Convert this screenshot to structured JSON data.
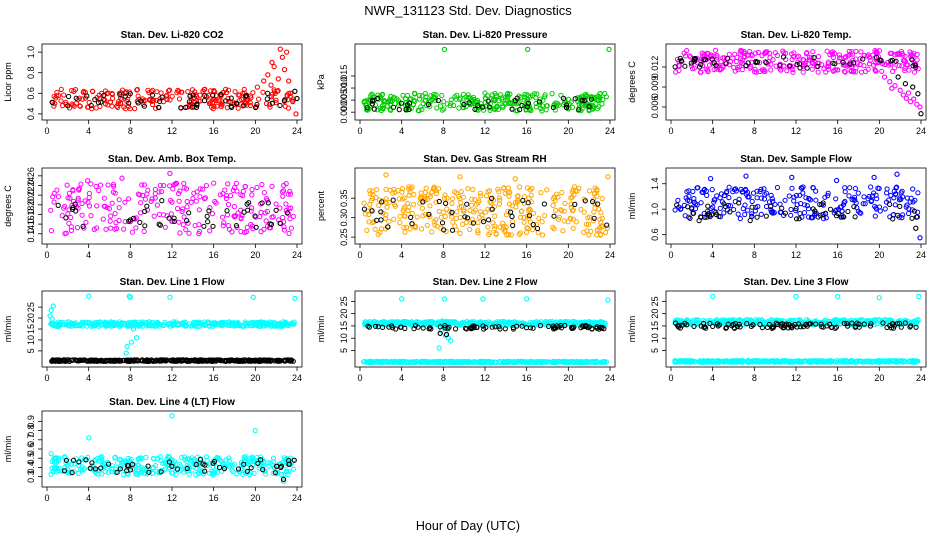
{
  "title": "NWR_131123  Std. Dev. Diagnostics",
  "xlabel": "Hour of Day (UTC)",
  "chart_data": [
    {
      "type": "scatter",
      "title": "Stan. Dev. Li-820 CO2",
      "ylabel": "Licor ppm",
      "xlim": [
        0,
        24
      ],
      "ylim": [
        0.37,
        1.05
      ],
      "xticks": [
        "0",
        "4",
        "8",
        "12",
        "16",
        "20",
        "24"
      ],
      "yticks": [
        "0.4",
        "0.6",
        "0.8",
        "1.0"
      ],
      "series": [
        {
          "color": "#ff0000",
          "dense": true,
          "band": [
            0.45,
            0.64
          ],
          "density": 0.55,
          "x": [
            20.2,
            20.8,
            21.2,
            21.5,
            21.8,
            22.1,
            22.4,
            22.6,
            22.8,
            23.0,
            23.2,
            23.4,
            23.6,
            23.9,
            21.6,
            22.2
          ],
          "y": [
            0.66,
            0.72,
            0.78,
            0.68,
            0.86,
            0.62,
            1.03,
            0.95,
            0.83,
            1.0,
            0.72,
            0.6,
            0.52,
            0.4,
            0.9,
            0.74
          ]
        },
        {
          "color": "#000000",
          "dense": true,
          "band": [
            0.46,
            0.6
          ],
          "density": 0.12,
          "x": [
            23.8,
            24.0
          ],
          "y": [
            0.62,
            0.55
          ]
        }
      ]
    },
    {
      "type": "scatter",
      "title": "Stan. Dev. Li-820 Pressure",
      "ylabel": "kPa",
      "xlim": [
        0,
        24
      ],
      "ylim": [
        -0.002,
        0.027
      ],
      "xticks": [
        "0",
        "4",
        "8",
        "12",
        "16",
        "20",
        "24"
      ],
      "yticks": [
        "0.000",
        "0.005",
        "0.010",
        "0.015"
      ],
      "series": [
        {
          "color": "#00cc00",
          "dense": true,
          "band": [
            0.0005,
            0.008
          ],
          "density": 0.75,
          "x": [
            8.1,
            16.1,
            23.9
          ],
          "y": [
            0.026,
            0.026,
            0.026
          ]
        },
        {
          "color": "#000000",
          "dense": true,
          "band": [
            0.001,
            0.006
          ],
          "density": 0.1,
          "x": [],
          "y": []
        }
      ]
    },
    {
      "type": "scatter",
      "title": "Stan. Dev. Li-820 Temp.",
      "ylabel": "degrees C",
      "xlim": [
        0,
        24
      ],
      "ylim": [
        0.0045,
        0.015
      ],
      "xticks": [
        "0",
        "4",
        "8",
        "12",
        "16",
        "20",
        "24"
      ],
      "yticks": [
        "0.006",
        "0.009",
        "0.012"
      ],
      "series": [
        {
          "color": "#ff00ff",
          "dense": true,
          "band": [
            0.0112,
            0.0145
          ],
          "density": 0.7,
          "x": [
            20.5,
            21.0,
            21.5,
            22.0,
            22.3,
            22.6,
            23.0,
            23.3,
            23.6,
            23.9,
            21.2,
            22.8
          ],
          "y": [
            0.0105,
            0.0098,
            0.0092,
            0.0085,
            0.0078,
            0.0073,
            0.0068,
            0.0072,
            0.0064,
            0.006,
            0.0088,
            0.0081
          ]
        },
        {
          "color": "#000000",
          "dense": true,
          "band": [
            0.0118,
            0.0135
          ],
          "density": 0.12,
          "x": [
            21.8,
            22.5,
            23.2,
            23.7,
            24.0
          ],
          "y": [
            0.0105,
            0.0095,
            0.009,
            0.008,
            0.005
          ]
        }
      ]
    },
    {
      "type": "scatter",
      "title": "Stan. Dev. Amb. Box Temp.",
      "ylabel": "degrees C",
      "xlim": [
        0,
        24
      ],
      "ylim": [
        0.125,
        0.27
      ],
      "xticks": [
        "0",
        "4",
        "8",
        "12",
        "16",
        "20",
        "24"
      ],
      "yticks": [
        "0.14",
        "0.16",
        "0.18",
        "0.20",
        "0.22",
        "0.24",
        "0.26"
      ],
      "series": [
        {
          "color": "#ff00ff",
          "dense": true,
          "band": [
            0.14,
            0.245
          ],
          "density": 0.6,
          "x": [
            11.8,
            7.2,
            3.9
          ],
          "y": [
            0.265,
            0.255,
            0.25
          ]
        },
        {
          "color": "#000000",
          "dense": true,
          "band": [
            0.15,
            0.21
          ],
          "density": 0.1,
          "x": [],
          "y": []
        }
      ]
    },
    {
      "type": "scatter",
      "title": "Stan. Dev. Gas Stream RH",
      "ylabel": "percent",
      "xlim": [
        0,
        24
      ],
      "ylim": [
        0.24,
        0.42
      ],
      "xticks": [
        "0",
        "4",
        "8",
        "12",
        "16",
        "20",
        "24"
      ],
      "yticks": [
        "0.25",
        "0.30",
        "0.35"
      ],
      "series": [
        {
          "color": "#ffa500",
          "dense": true,
          "band": [
            0.255,
            0.38
          ],
          "density": 0.8,
          "x": [
            2.5,
            9.6,
            14.9,
            23.8
          ],
          "y": [
            0.41,
            0.405,
            0.4,
            0.405
          ]
        },
        {
          "color": "#000000",
          "dense": true,
          "band": [
            0.265,
            0.35
          ],
          "density": 0.1,
          "x": [],
          "y": []
        }
      ]
    },
    {
      "type": "scatter",
      "title": "Stan. Dev. Sample Flow",
      "ylabel": "ml/min",
      "xlim": [
        0,
        24
      ],
      "ylim": [
        0.5,
        1.6
      ],
      "xticks": [
        "0",
        "4",
        "8",
        "12",
        "16",
        "20",
        "24"
      ],
      "yticks": [
        "0.6",
        "1.0",
        "1.4"
      ],
      "series": [
        {
          "color": "#0000ff",
          "dense": true,
          "band": [
            0.85,
            1.35
          ],
          "density": 0.6,
          "x": [
            3.8,
            7.2,
            11.6,
            15.9,
            19.5,
            23.9,
            21.7
          ],
          "y": [
            1.48,
            1.52,
            1.5,
            1.45,
            1.5,
            0.55,
            1.55
          ]
        },
        {
          "color": "#000000",
          "dense": true,
          "band": [
            0.82,
            1.1
          ],
          "density": 0.12,
          "x": [
            23.5
          ],
          "y": [
            0.7
          ]
        }
      ]
    },
    {
      "type": "scatter",
      "title": "Stan. Dev. Line 1 Flow",
      "ylabel": "ml/min",
      "xlim": [
        0,
        24
      ],
      "ylim": [
        -1,
        31
      ],
      "xticks": [
        "0",
        "4",
        "8",
        "12",
        "16",
        "20",
        "24"
      ],
      "yticks": [
        "5",
        "10",
        "15",
        "20",
        "25"
      ],
      "series": [
        {
          "color": "#00ffff",
          "dense": true,
          "band": [
            16.2,
            18.3
          ],
          "density": 0.9,
          "x": [
            0.3,
            0.4,
            0.5,
            0.6,
            4.0,
            7.9,
            8.0,
            8.3,
            8.6,
            7.7,
            8.1,
            11.8,
            19.8,
            23.8,
            7.6
          ],
          "y": [
            21,
            23.5,
            19.5,
            25.5,
            30,
            30,
            29.5,
            15,
            11,
            7,
            9,
            29.5,
            29.5,
            29,
            4
          ]
        },
        {
          "color": "#000000",
          "dense": true,
          "band": [
            0.2,
            0.9
          ],
          "density": 0.9,
          "x": [],
          "y": []
        }
      ]
    },
    {
      "type": "scatter",
      "title": "Stan. Dev. Line 2 Flow",
      "ylabel": "ml/min",
      "xlim": [
        0,
        24
      ],
      "ylim": [
        -0.5,
        28
      ],
      "xticks": [
        "0",
        "4",
        "8",
        "12",
        "16",
        "20",
        "24"
      ],
      "yticks": [
        "5",
        "10",
        "15",
        "20",
        "25"
      ],
      "series": [
        {
          "color": "#00ffff",
          "dense": true,
          "band": [
            15.3,
            16.8
          ],
          "density": 0.9,
          "x": [
            4.0,
            8.1,
            8.3,
            8.5,
            7.8,
            8.2,
            8.7,
            7.6,
            11.8,
            16.0,
            23.8,
            7.9
          ],
          "y": [
            26,
            26,
            14,
            10,
            13,
            11,
            9,
            6,
            26,
            26,
            25.5,
            17
          ]
        },
        {
          "color": "#00ffff",
          "dense": true,
          "band": [
            0.1,
            0.6
          ],
          "density": 0.9,
          "x": [],
          "y": []
        },
        {
          "color": "#000000",
          "dense": true,
          "band": [
            13.7,
            15.2
          ],
          "density": 0.2,
          "x": [
            7.7,
            8.3
          ],
          "y": [
            12,
            11.5
          ]
        }
      ]
    },
    {
      "type": "scatter",
      "title": "Stan. Dev. Line 3 Flow",
      "ylabel": "ml/min",
      "xlim": [
        0,
        24
      ],
      "ylim": [
        -0.5,
        28
      ],
      "xticks": [
        "0",
        "4",
        "8",
        "12",
        "16",
        "20",
        "24"
      ],
      "yticks": [
        "5",
        "10",
        "15",
        "20",
        "25"
      ],
      "series": [
        {
          "color": "#00ffff",
          "dense": true,
          "band": [
            15.4,
            17.6
          ],
          "density": 0.9,
          "x": [
            4.0,
            12.0,
            16.0,
            20.0,
            23.8
          ],
          "y": [
            27,
            27,
            27,
            26.5,
            27
          ]
        },
        {
          "color": "#00ffff",
          "dense": true,
          "band": [
            0.2,
            0.9
          ],
          "density": 0.9,
          "x": [],
          "y": []
        },
        {
          "color": "#000000",
          "dense": true,
          "band": [
            14.0,
            16.2
          ],
          "density": 0.25,
          "x": [],
          "y": []
        }
      ]
    },
    {
      "type": "scatter",
      "title": "Stan. Dev. Line 4 (LT) Flow",
      "ylabel": "ml/min",
      "xlim": [
        0,
        24
      ],
      "ylim": [
        0.22,
        0.98
      ],
      "xticks": [
        "0",
        "4",
        "8",
        "12",
        "16",
        "20",
        "24"
      ],
      "yticks": [
        "0.3",
        "0.4",
        "0.5",
        "0.6",
        "0.7",
        "0.8",
        "0.9"
      ],
      "series": [
        {
          "color": "#00ffff",
          "dense": true,
          "band": [
            0.32,
            0.52
          ],
          "density": 0.8,
          "x": [
            12.0,
            4.0,
            20.0,
            0.4,
            22.7
          ],
          "y": [
            0.96,
            0.72,
            0.8,
            0.55,
            0.25
          ]
        },
        {
          "color": "#000000",
          "dense": true,
          "band": [
            0.34,
            0.5
          ],
          "density": 0.12,
          "x": [
            22.7
          ],
          "y": [
            0.27
          ]
        }
      ]
    }
  ]
}
